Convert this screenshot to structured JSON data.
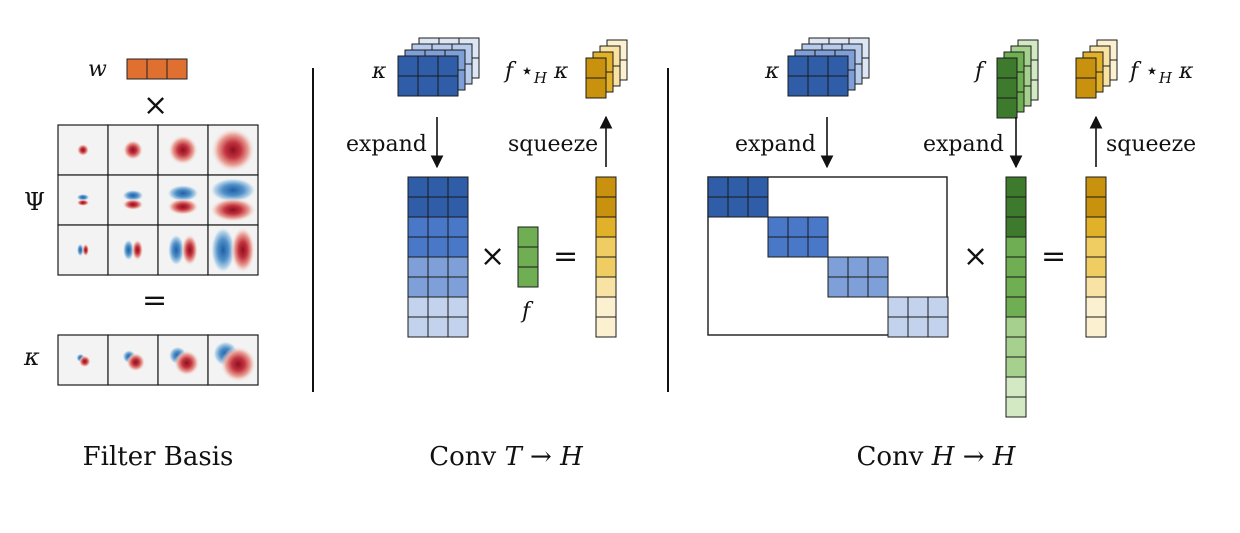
{
  "colors": {
    "orange": "#E07030",
    "blue": [
      "#2F5DA8",
      "#4A78C8",
      "#7E9FD8",
      "#C3D3EE"
    ],
    "blue_stack": [
      "#DCE6F5",
      "#B7CBEC",
      "#7E9FD8",
      "#2F5DA8"
    ],
    "yellow": [
      "#C9920E",
      "#E2B12A",
      "#F0CD62",
      "#F8E3A4",
      "#FBF0CF"
    ],
    "green": [
      "#3E7A2E",
      "#6FAE52",
      "#A5D08E",
      "#D2E9C4"
    ],
    "red": "#B2182B",
    "cyan": "#2166AC"
  },
  "panels": {
    "filter_basis": {
      "caption": "Filter Basis",
      "w_label": "w",
      "times": "×",
      "psi_label": "Ψ",
      "equals": "=",
      "kappa_label": "κ"
    },
    "conv_t_h": {
      "caption_prefix": "Conv ",
      "caption_T": "T",
      "caption_arrow": " → ",
      "caption_H": "H",
      "kappa_label": "κ",
      "f_star_label": "f",
      "star_sym": " ⋆",
      "star_sub": "H",
      "star_kappa": " κ",
      "expand": "expand",
      "squeeze": "squeeze",
      "times": "×",
      "equals": "=",
      "f_label": "f"
    },
    "conv_h_h": {
      "caption_prefix": "Conv ",
      "caption_H1": "H",
      "caption_arrow": " → ",
      "caption_H2": "H",
      "kappa_label": "κ",
      "f_label": "f",
      "f_star_label": "f",
      "star_sym": " ⋆",
      "star_sub": "H",
      "star_kappa": " κ",
      "expand_left": "expand",
      "expand_right": "expand",
      "squeeze": "squeeze",
      "times": "×",
      "equals": "="
    }
  }
}
